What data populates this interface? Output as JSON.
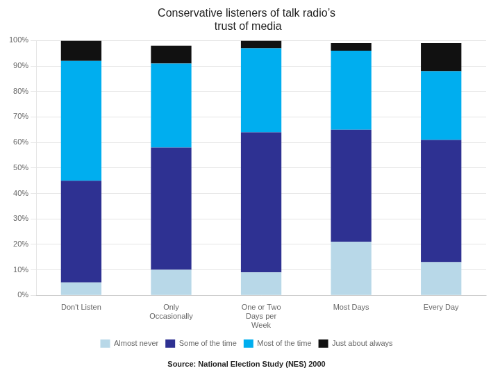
{
  "chart_data": {
    "type": "bar",
    "title": "Conservative listeners of talk radio’s\n trust of media",
    "annotations": [
      "Source: National Election Study (NES) 2000"
    ],
    "categories": [
      "Don't Listen",
      "Only\nOccasionally",
      "One or Two\nDays per\nWeek",
      "Most Days",
      "Every Day"
    ],
    "series": [
      {
        "name": "Almost never",
        "color": "#b8d8e8",
        "values": [
          5,
          10,
          9,
          21,
          13
        ]
      },
      {
        "name": "Some of the time",
        "color": "#2e3192",
        "values": [
          40,
          48,
          55,
          44,
          48
        ]
      },
      {
        "name": "Most of the time",
        "color": "#00aeef",
        "values": [
          47,
          33,
          33,
          31,
          27
        ]
      },
      {
        "name": "Just about always",
        "color": "#111111",
        "values": [
          8,
          7,
          3,
          3,
          11
        ]
      }
    ],
    "stacked": true,
    "ylim": [
      0,
      100
    ],
    "yticks": [
      {
        "value": 0,
        "label": "0%"
      },
      {
        "value": 10,
        "label": "10%"
      },
      {
        "value": 20,
        "label": "20%"
      },
      {
        "value": 30,
        "label": "30%"
      },
      {
        "value": 40,
        "label": "40%"
      },
      {
        "value": 50,
        "label": "50%"
      },
      {
        "value": 60,
        "label": "60%"
      },
      {
        "value": 70,
        "label": "70%"
      },
      {
        "value": 80,
        "label": "80%"
      },
      {
        "value": 90,
        "label": "90%"
      },
      {
        "value": 100,
        "label": "100%"
      }
    ],
    "grid": true,
    "legend": "bottom"
  }
}
